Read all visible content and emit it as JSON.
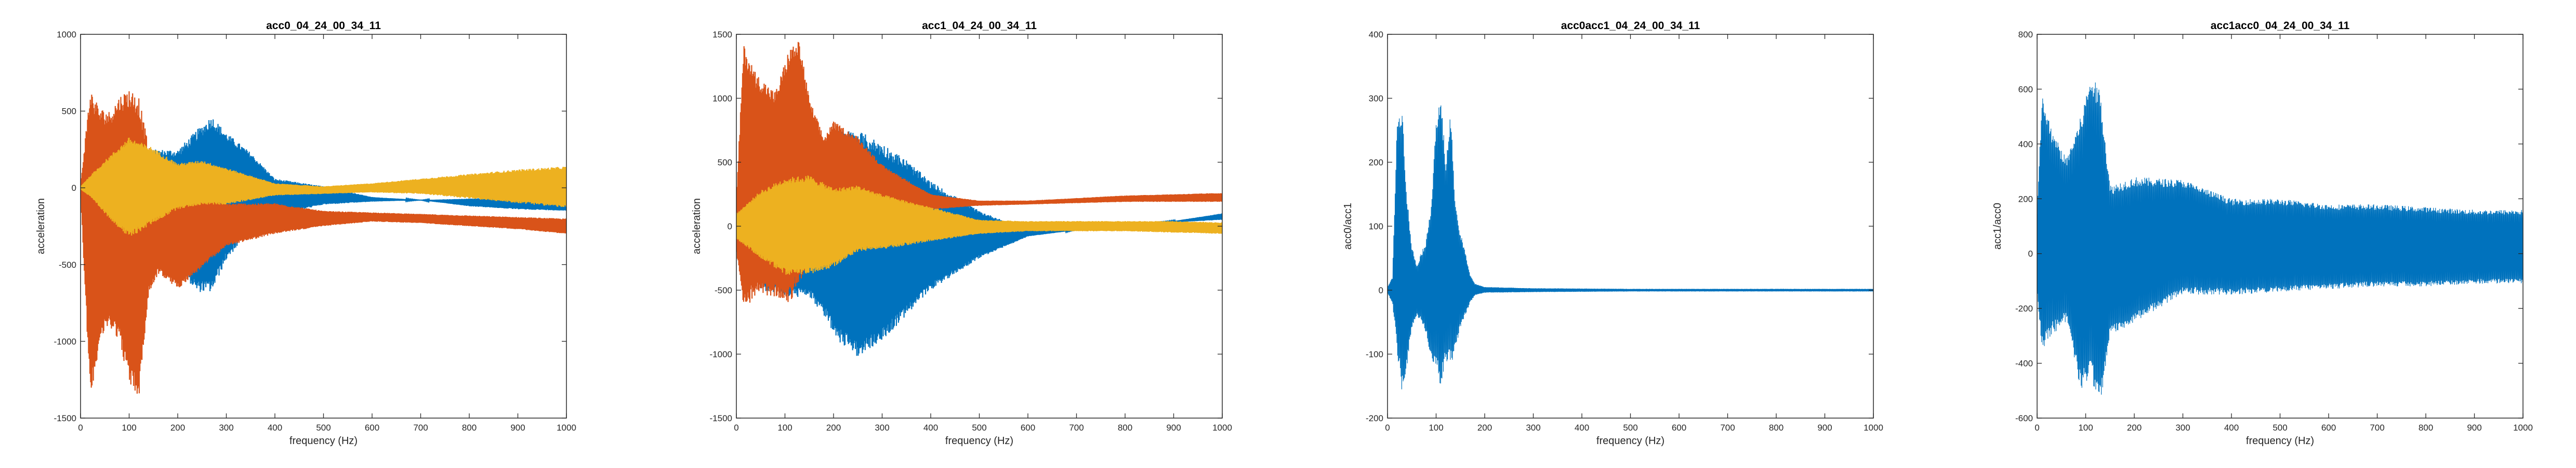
{
  "figure": {
    "background": "#ffffff"
  },
  "chart_data": [
    {
      "type": "line",
      "title": "acc0_04_24_00_34_11",
      "xlabel": "frequency (Hz)",
      "ylabel": "acceleration",
      "xlim": [
        0,
        1000
      ],
      "ylim": [
        -1500,
        1000
      ],
      "xticks": [
        "0",
        "100",
        "200",
        "300",
        "400",
        "500",
        "600",
        "700",
        "800",
        "900",
        "1000"
      ],
      "yticks": [
        "-1500",
        "-1000",
        "-500",
        "0",
        "500",
        "1000"
      ],
      "grid": false,
      "series": [
        {
          "color": "#0072bd",
          "envelope_x": [
            0,
            20,
            50,
            100,
            150,
            200,
            240,
            270,
            300,
            350,
            400,
            500,
            600,
            700,
            800,
            900,
            1000
          ],
          "envelope_upper": [
            40,
            120,
            140,
            170,
            250,
            250,
            380,
            470,
            360,
            230,
            60,
            10,
            -60,
            -80,
            -120,
            -140,
            -150
          ],
          "envelope_lower": [
            -40,
            -80,
            -100,
            -130,
            -350,
            -520,
            -680,
            -680,
            -470,
            -280,
            -180,
            -110,
            -90,
            -80,
            -70,
            -60,
            -60
          ]
        },
        {
          "color": "#d95319",
          "envelope_x": [
            0,
            20,
            40,
            60,
            80,
            100,
            120,
            140,
            160,
            200,
            240,
            300,
            400,
            500,
            600,
            700,
            800,
            900,
            1000
          ],
          "envelope_upper": [
            20,
            650,
            520,
            500,
            600,
            650,
            600,
            270,
            110,
            0,
            -40,
            -100,
            -100,
            -150,
            -160,
            -170,
            -180,
            -190,
            -200
          ],
          "envelope_lower": [
            -20,
            -1380,
            -1000,
            -900,
            -1000,
            -1280,
            -1370,
            -700,
            -560,
            -660,
            -550,
            -380,
            -300,
            -250,
            -220,
            -230,
            -250,
            -270,
            -300
          ]
        },
        {
          "color": "#edb120",
          "envelope_x": [
            0,
            20,
            50,
            100,
            150,
            200,
            250,
            300,
            400,
            500,
            600,
            700,
            800,
            900,
            1000
          ],
          "envelope_upper": [
            10,
            80,
            180,
            330,
            260,
            160,
            180,
            130,
            30,
            10,
            30,
            60,
            90,
            120,
            140
          ],
          "envelope_lower": [
            -10,
            -60,
            -170,
            -330,
            -230,
            -140,
            -110,
            -110,
            -50,
            -40,
            -30,
            -40,
            -70,
            -100,
            -130
          ]
        }
      ]
    },
    {
      "type": "line",
      "title": "acc1_04_24_00_34_11",
      "xlabel": "frequency (Hz)",
      "ylabel": "acceleration",
      "xlim": [
        0,
        1000
      ],
      "ylim": [
        -1500,
        1500
      ],
      "xticks": [
        "0",
        "100",
        "200",
        "300",
        "400",
        "500",
        "600",
        "700",
        "800",
        "900",
        "1000"
      ],
      "yticks": [
        "-1500",
        "-1000",
        "-500",
        "0",
        "500",
        "1000",
        "1500"
      ],
      "grid": false,
      "series": [
        {
          "color": "#0072bd",
          "envelope_x": [
            0,
            50,
            100,
            150,
            180,
            210,
            250,
            300,
            350,
            400,
            500,
            600,
            700,
            800,
            900,
            1000
          ],
          "envelope_upper": [
            200,
            550,
            600,
            500,
            680,
            750,
            750,
            650,
            520,
            350,
            120,
            -30,
            -30,
            0,
            40,
            100
          ],
          "envelope_lower": [
            -200,
            -500,
            -550,
            -560,
            -700,
            -900,
            -1020,
            -900,
            -700,
            -500,
            -250,
            -80,
            -30,
            0,
            30,
            50
          ]
        },
        {
          "color": "#d95319",
          "envelope_x": [
            0,
            15,
            40,
            80,
            110,
            130,
            150,
            180,
            200,
            250,
            300,
            400,
            500,
            600,
            700,
            800,
            900,
            1000
          ],
          "envelope_upper": [
            200,
            1420,
            1200,
            1050,
            1400,
            1450,
            1000,
            700,
            820,
            700,
            480,
            250,
            200,
            200,
            220,
            240,
            250,
            260
          ],
          "envelope_lower": [
            -200,
            -650,
            -550,
            -550,
            -600,
            -450,
            -300,
            -250,
            -100,
            0,
            80,
            130,
            160,
            170,
            180,
            190,
            190,
            190
          ]
        },
        {
          "color": "#edb120",
          "envelope_x": [
            0,
            50,
            100,
            150,
            200,
            250,
            300,
            400,
            500,
            600,
            700,
            800,
            900,
            1000
          ],
          "envelope_upper": [
            100,
            280,
            380,
            400,
            300,
            320,
            250,
            150,
            50,
            40,
            40,
            40,
            40,
            30
          ],
          "envelope_lower": [
            -100,
            -250,
            -380,
            -380,
            -320,
            -200,
            -180,
            -120,
            -60,
            -40,
            -40,
            -40,
            -50,
            -60
          ]
        }
      ]
    },
    {
      "type": "line",
      "title": "acc0acc1_04_24_00_34_11",
      "xlabel": "frequency (Hz)",
      "ylabel": "acc0/acc1",
      "xlim": [
        0,
        1000
      ],
      "ylim": [
        -200,
        400
      ],
      "xticks": [
        "0",
        "100",
        "200",
        "300",
        "400",
        "500",
        "600",
        "700",
        "800",
        "900",
        "1000"
      ],
      "yticks": [
        "-200",
        "-100",
        "0",
        "100",
        "200",
        "300",
        "400"
      ],
      "grid": false,
      "series": [
        {
          "color": "#0072bd",
          "envelope_x": [
            0,
            10,
            20,
            30,
            40,
            50,
            60,
            70,
            80,
            90,
            100,
            110,
            120,
            130,
            140,
            150,
            160,
            170,
            180,
            200,
            300,
            500,
            1000
          ],
          "envelope_upper": [
            5,
            20,
            270,
            290,
            150,
            70,
            40,
            60,
            80,
            140,
            270,
            300,
            200,
            280,
            130,
            90,
            60,
            25,
            10,
            5,
            3,
            2,
            2
          ],
          "envelope_lower": [
            -5,
            -20,
            -100,
            -160,
            -120,
            -60,
            -40,
            -50,
            -70,
            -110,
            -130,
            -150,
            -110,
            -120,
            -90,
            -60,
            -40,
            -20,
            -8,
            -4,
            -3,
            -2,
            -2
          ]
        }
      ]
    },
    {
      "type": "line",
      "title": "acc1acc0_04_24_00_34_11",
      "xlabel": "frequency (Hz)",
      "ylabel": "acc1/acc0",
      "xlim": [
        0,
        1000
      ],
      "ylim": [
        -600,
        800
      ],
      "xticks": [
        "0",
        "100",
        "200",
        "300",
        "400",
        "500",
        "600",
        "700",
        "800",
        "900",
        "1000"
      ],
      "yticks": [
        "-600",
        "-400",
        "-200",
        "0",
        "200",
        "400",
        "600",
        "800"
      ],
      "grid": false,
      "series": [
        {
          "color": "#0072bd",
          "envelope_x": [
            0,
            10,
            30,
            60,
            90,
            110,
            130,
            150,
            200,
            300,
            400,
            500,
            600,
            700,
            800,
            900,
            1000
          ],
          "envelope_upper": [
            150,
            580,
            450,
            350,
            500,
            650,
            600,
            250,
            280,
            270,
            200,
            200,
            180,
            180,
            170,
            160,
            160
          ],
          "envelope_lower": [
            -150,
            -350,
            -300,
            -250,
            -500,
            -450,
            -560,
            -300,
            -250,
            -150,
            -150,
            -140,
            -130,
            -120,
            -120,
            -110,
            -110
          ]
        }
      ]
    }
  ]
}
